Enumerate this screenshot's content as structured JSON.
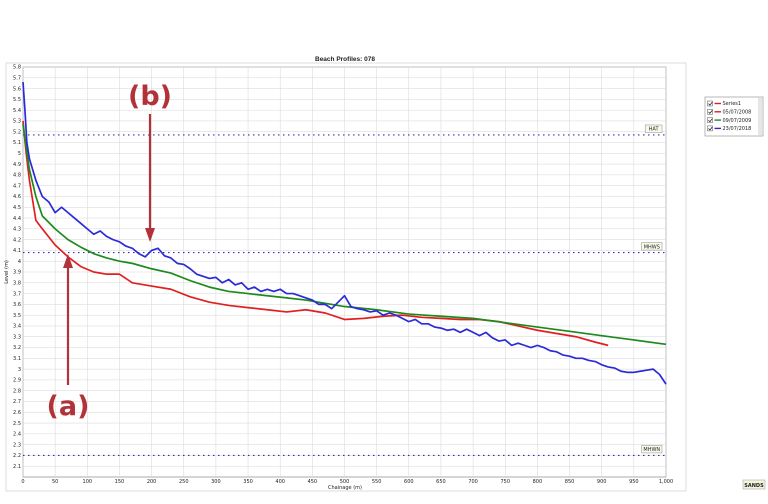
{
  "chart_data": {
    "type": "line",
    "title": "Beach Profiles: 078",
    "xlabel": "Chainage (m)",
    "ylabel": "Level (m)",
    "xlim": [
      0,
      1000
    ],
    "ylim": [
      2.0,
      5.8
    ],
    "x_ticks": [
      0,
      50,
      100,
      150,
      200,
      250,
      300,
      350,
      400,
      450,
      500,
      550,
      600,
      650,
      700,
      750,
      800,
      850,
      900,
      950,
      1000
    ],
    "x_tick_labels": [
      "0",
      "50",
      "100",
      "150",
      "200",
      "250",
      "300",
      "350",
      "400",
      "450",
      "500",
      "550",
      "600",
      "650",
      "700",
      "750",
      "800",
      "850",
      "900",
      "950",
      "1,000"
    ],
    "y_ticks": [
      2.1,
      2.2,
      2.3,
      2.4,
      2.5,
      2.6,
      2.7,
      2.8,
      2.9,
      3,
      3.1,
      3.2,
      3.3,
      3.4,
      3.5,
      3.6,
      3.7,
      3.8,
      3.9,
      4,
      4.1,
      4.2,
      4.3,
      4.4,
      4.5,
      4.6,
      4.7,
      4.8,
      4.9,
      5,
      5.1,
      5.2,
      5.3,
      5.4,
      5.5,
      5.6,
      5.7,
      5.8
    ],
    "grid": true,
    "legend_position": "top-right",
    "reference_lines": [
      {
        "label": "HAT",
        "y": 5.17,
        "color": "#3030c0"
      },
      {
        "label": "MHWS",
        "y": 4.08,
        "color": "#3030c0"
      },
      {
        "label": "MHWN",
        "y": 2.2,
        "color": "#3030c0"
      }
    ],
    "series": [
      {
        "name": "Series1",
        "color": "#e02020",
        "legend_color": "#e02020",
        "visible_line": false,
        "x": [],
        "y": []
      },
      {
        "name": "05/07/2008",
        "color": "#e02020",
        "legend_color": "#e02020",
        "x": [
          0,
          5,
          10,
          20,
          30,
          50,
          70,
          90,
          110,
          130,
          150,
          170,
          200,
          230,
          260,
          290,
          320,
          350,
          380,
          410,
          440,
          470,
          500,
          530,
          560,
          590,
          620,
          650,
          680,
          710,
          740,
          770,
          800,
          830,
          860,
          890,
          910
        ],
        "y": [
          5.3,
          5.0,
          4.75,
          4.38,
          4.3,
          4.15,
          4.04,
          3.95,
          3.9,
          3.88,
          3.88,
          3.8,
          3.77,
          3.74,
          3.67,
          3.62,
          3.59,
          3.57,
          3.55,
          3.53,
          3.55,
          3.52,
          3.46,
          3.47,
          3.49,
          3.5,
          3.48,
          3.47,
          3.46,
          3.46,
          3.44,
          3.4,
          3.36,
          3.33,
          3.3,
          3.25,
          3.22
        ]
      },
      {
        "name": "09/07/2009",
        "color": "#1e8a1e",
        "legend_color": "#1e8a1e",
        "x": [
          0,
          5,
          10,
          20,
          30,
          50,
          70,
          90,
          110,
          130,
          150,
          170,
          200,
          230,
          260,
          290,
          320,
          350,
          380,
          410,
          440,
          470,
          500,
          550,
          600,
          650,
          700,
          750,
          800,
          850,
          900,
          950,
          1000
        ],
        "y": [
          5.27,
          5.05,
          4.85,
          4.6,
          4.42,
          4.3,
          4.2,
          4.13,
          4.07,
          4.03,
          4.0,
          3.98,
          3.93,
          3.89,
          3.82,
          3.76,
          3.72,
          3.7,
          3.68,
          3.66,
          3.64,
          3.61,
          3.58,
          3.55,
          3.51,
          3.49,
          3.47,
          3.43,
          3.39,
          3.35,
          3.31,
          3.27,
          3.23
        ]
      },
      {
        "name": "23/07/2018",
        "color": "#2a2ad8",
        "legend_color": "#2a2ad8",
        "x": [
          0,
          3,
          6,
          10,
          15,
          20,
          30,
          40,
          50,
          60,
          70,
          80,
          90,
          100,
          110,
          120,
          130,
          140,
          150,
          160,
          170,
          180,
          190,
          200,
          210,
          220,
          230,
          240,
          250,
          260,
          270,
          280,
          290,
          300,
          310,
          320,
          330,
          340,
          350,
          360,
          370,
          380,
          390,
          400,
          410,
          420,
          430,
          440,
          450,
          460,
          470,
          480,
          490,
          500,
          510,
          520,
          530,
          540,
          550,
          560,
          570,
          580,
          590,
          600,
          610,
          620,
          630,
          640,
          650,
          660,
          670,
          680,
          690,
          700,
          710,
          720,
          730,
          740,
          750,
          760,
          770,
          780,
          790,
          800,
          810,
          820,
          830,
          840,
          850,
          860,
          870,
          880,
          890,
          900,
          910,
          920,
          930,
          940,
          950,
          960,
          970,
          980,
          990,
          1000
        ],
        "y": [
          5.66,
          5.4,
          5.1,
          4.95,
          4.85,
          4.75,
          4.6,
          4.55,
          4.45,
          4.5,
          4.45,
          4.4,
          4.35,
          4.3,
          4.25,
          4.28,
          4.23,
          4.2,
          4.18,
          4.14,
          4.12,
          4.07,
          4.04,
          4.1,
          4.12,
          4.05,
          4.03,
          3.98,
          3.97,
          3.93,
          3.88,
          3.86,
          3.84,
          3.85,
          3.8,
          3.83,
          3.78,
          3.8,
          3.74,
          3.76,
          3.72,
          3.74,
          3.72,
          3.74,
          3.7,
          3.7,
          3.68,
          3.66,
          3.64,
          3.6,
          3.6,
          3.56,
          3.62,
          3.68,
          3.58,
          3.56,
          3.55,
          3.53,
          3.54,
          3.5,
          3.52,
          3.5,
          3.47,
          3.44,
          3.46,
          3.42,
          3.42,
          3.39,
          3.38,
          3.36,
          3.37,
          3.34,
          3.37,
          3.34,
          3.31,
          3.34,
          3.29,
          3.26,
          3.27,
          3.22,
          3.24,
          3.22,
          3.2,
          3.22,
          3.2,
          3.17,
          3.16,
          3.13,
          3.12,
          3.1,
          3.1,
          3.08,
          3.07,
          3.04,
          3.02,
          3.01,
          2.98,
          2.97,
          2.97,
          2.98,
          2.99,
          3.0,
          2.95,
          2.86
        ]
      }
    ],
    "annotations": [
      {
        "label": "(a)",
        "arrow_to": {
          "x": 68,
          "y": 4.06
        }
      },
      {
        "label": "(b)",
        "arrow_to": {
          "x": 196,
          "y": 4.08
        }
      }
    ],
    "logo_text": "SANDS"
  }
}
